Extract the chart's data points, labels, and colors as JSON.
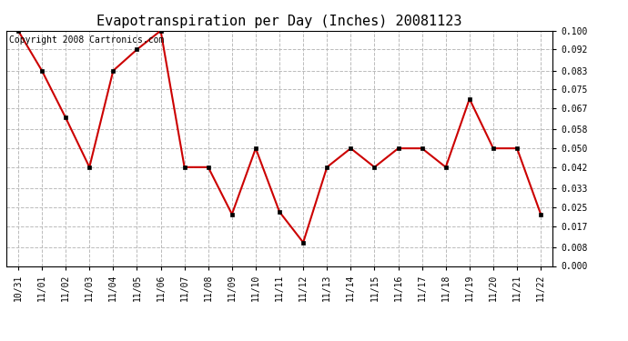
{
  "title": "Evapotranspiration per Day (Inches) 20081123",
  "copyright_text": "Copyright 2008 Cartronics.com",
  "x_labels": [
    "10/31",
    "11/01",
    "11/02",
    "11/03",
    "11/04",
    "11/05",
    "11/06",
    "11/07",
    "11/08",
    "11/09",
    "11/10",
    "11/11",
    "11/12",
    "11/13",
    "11/14",
    "11/15",
    "11/16",
    "11/17",
    "11/18",
    "11/19",
    "11/20",
    "11/21",
    "11/22"
  ],
  "y_values": [
    0.1,
    0.083,
    0.063,
    0.042,
    0.083,
    0.092,
    0.1,
    0.042,
    0.042,
    0.022,
    0.05,
    0.023,
    0.01,
    0.042,
    0.05,
    0.042,
    0.05,
    0.05,
    0.042,
    0.071,
    0.05,
    0.05,
    0.022
  ],
  "line_color": "#cc0000",
  "marker_facecolor": "#000000",
  "marker_edgecolor": "#000000",
  "background_color": "#ffffff",
  "grid_color": "#bbbbbb",
  "ylim": [
    0.0,
    0.1
  ],
  "yticks": [
    0.0,
    0.008,
    0.017,
    0.025,
    0.033,
    0.042,
    0.05,
    0.058,
    0.067,
    0.075,
    0.083,
    0.092,
    0.1
  ],
  "title_fontsize": 11,
  "copyright_fontsize": 7,
  "tick_fontsize": 7,
  "figwidth": 6.9,
  "figheight": 3.75,
  "dpi": 100
}
